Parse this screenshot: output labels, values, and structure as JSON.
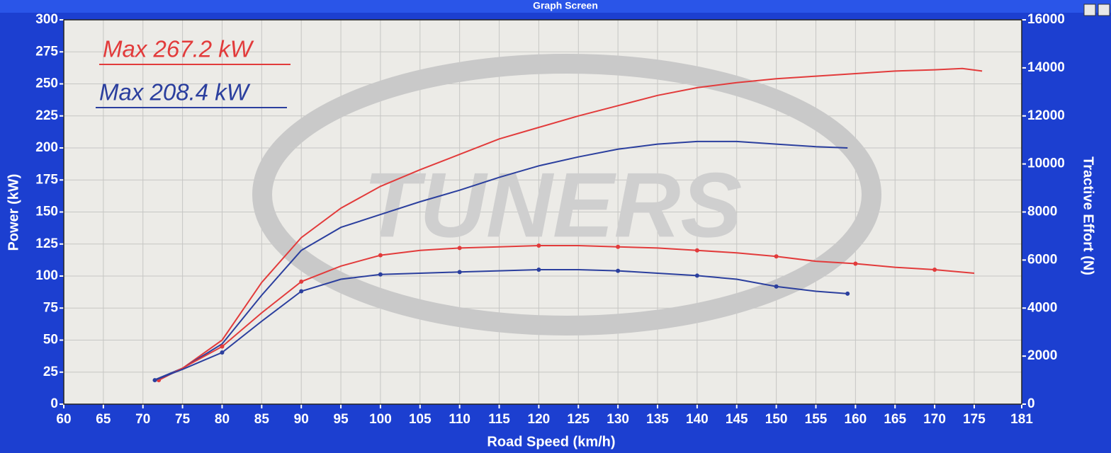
{
  "window_title": "Graph Screen",
  "chart_data": {
    "type": "line",
    "watermark": "TUNERS",
    "x_label": "Road Speed (km/h)",
    "y_label": "Power (kW)",
    "y2_label": "Tractive Effort (N)",
    "xlim": [
      60,
      181
    ],
    "xticks": [
      60,
      65,
      70,
      75,
      80,
      85,
      90,
      95,
      100,
      105,
      110,
      115,
      120,
      125,
      130,
      135,
      140,
      145,
      150,
      155,
      160,
      165,
      170,
      175,
      181
    ],
    "ylim": [
      0,
      300
    ],
    "yticks": [
      0,
      25,
      50,
      75,
      100,
      125,
      150,
      175,
      200,
      225,
      250,
      275,
      300
    ],
    "y2lim": [
      0,
      16000
    ],
    "y2ticks": [
      0,
      2000,
      4000,
      6000,
      8000,
      10000,
      12000,
      14000,
      16000
    ],
    "grid": true,
    "series": [
      {
        "name": "Max 267.2 kW",
        "color": "#e23b3b",
        "x": [
          72,
          75,
          80,
          85,
          90,
          95,
          100,
          105,
          110,
          115,
          120,
          125,
          130,
          135,
          140,
          145,
          150,
          155,
          160,
          165,
          170,
          173.5,
          176
        ],
        "values": [
          20,
          28,
          50,
          95,
          130,
          153,
          170,
          183,
          195,
          207,
          216,
          225,
          233,
          241,
          247,
          251,
          254,
          256,
          258,
          260,
          261,
          262,
          260
        ]
      },
      {
        "name": "Max 208.4 kW",
        "color": "#2b3f9e",
        "x": [
          71.5,
          75,
          80,
          85,
          90,
          95,
          100,
          105,
          110,
          115,
          120,
          125,
          130,
          135,
          140,
          145,
          150,
          155,
          159
        ],
        "values": [
          19,
          28,
          47,
          85,
          120,
          138,
          148,
          158,
          167,
          177,
          186,
          193,
          199,
          203,
          205,
          205,
          203,
          201,
          200
        ]
      },
      {
        "color": "#e23b3b",
        "axis": "y2",
        "markers": true,
        "x": [
          72,
          75,
          80,
          85,
          90,
          95,
          100,
          105,
          110,
          115,
          120,
          125,
          130,
          135,
          140,
          145,
          150,
          155,
          160,
          165,
          170,
          175
        ],
        "values": [
          1000,
          1500,
          2400,
          3800,
          5100,
          5750,
          6200,
          6400,
          6500,
          6550,
          6600,
          6600,
          6550,
          6500,
          6400,
          6300,
          6150,
          5950,
          5850,
          5700,
          5600,
          5450
        ]
      },
      {
        "color": "#2b3f9e",
        "axis": "y2",
        "markers": true,
        "x": [
          71.5,
          75,
          80,
          85,
          90,
          95,
          100,
          105,
          110,
          115,
          120,
          125,
          130,
          135,
          140,
          145,
          150,
          155,
          159
        ],
        "values": [
          1000,
          1450,
          2150,
          3450,
          4700,
          5200,
          5400,
          5450,
          5500,
          5550,
          5600,
          5600,
          5550,
          5450,
          5350,
          5200,
          4900,
          4700,
          4600
        ]
      }
    ]
  }
}
